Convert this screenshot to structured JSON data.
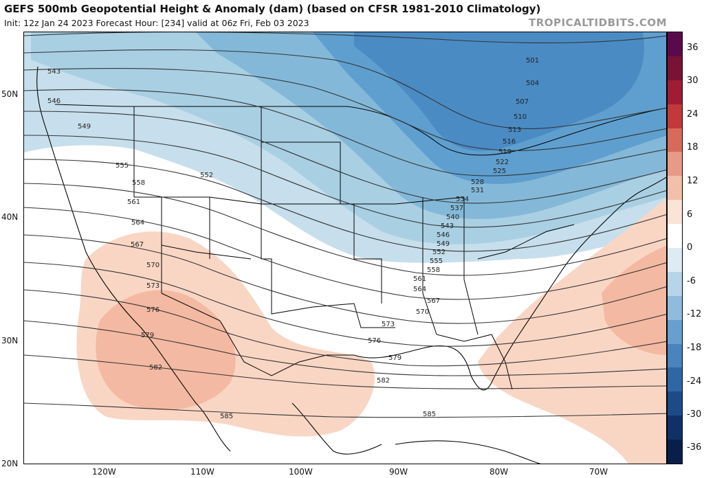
{
  "title": "GEFS 500mb Geopotential Height & Anomaly (dam) (based on CFSR 1981-2010 Climatology)",
  "subtitle": "Init: 12z Jan 24 2023   Forecast Hour: [234]   valid at 06z Fri, Feb 03 2023",
  "credit": "TROPICALTIDBITS.COM",
  "colors": {
    "pos_light": "#f9d6c4",
    "pos_mid": "#f4b9a2",
    "neg_1": "#c7dfec",
    "neg_2": "#a9cfe3",
    "neg_3": "#84b8d8",
    "neg_4": "#5f9fcf",
    "neg_5": "#4a8bc4",
    "contour": "#333333",
    "state_lines": "#000000"
  },
  "colorbar": {
    "labels": [
      "36",
      "30",
      "24",
      "18",
      "12",
      "6",
      "0",
      "-6",
      "-12",
      "-18",
      "-24",
      "-30",
      "-36"
    ],
    "colors": [
      "#5a0a4a",
      "#7a1236",
      "#a01c34",
      "#c2383b",
      "#d86a5a",
      "#e79a86",
      "#f2c0aa",
      "#fbe3d6",
      "#ffffff",
      "#dcebf4",
      "#b7d5e8",
      "#8fbcdc",
      "#679fd0",
      "#4a83bd",
      "#2f66a6",
      "#1c4b88",
      "#0f3168",
      "#081f4a"
    ]
  },
  "lat_labels": [
    "50N",
    "40N",
    "30N",
    "20N"
  ],
  "lon_labels": [
    "120W",
    "110W",
    "100W",
    "90W",
    "80W",
    "70W"
  ],
  "contour_labels": [
    "501",
    "504",
    "507",
    "510",
    "513",
    "516",
    "519",
    "522",
    "525",
    "528",
    "531",
    "534",
    "537",
    "540",
    "543",
    "546",
    "549",
    "552",
    "555",
    "558",
    "561",
    "564",
    "567",
    "570",
    "573",
    "576",
    "579",
    "582",
    "585"
  ],
  "west_labels": [
    "543",
    "546",
    "549",
    "552",
    "555",
    "558",
    "561",
    "564",
    "567",
    "570",
    "573",
    "576",
    "579",
    "582",
    "585"
  ]
}
